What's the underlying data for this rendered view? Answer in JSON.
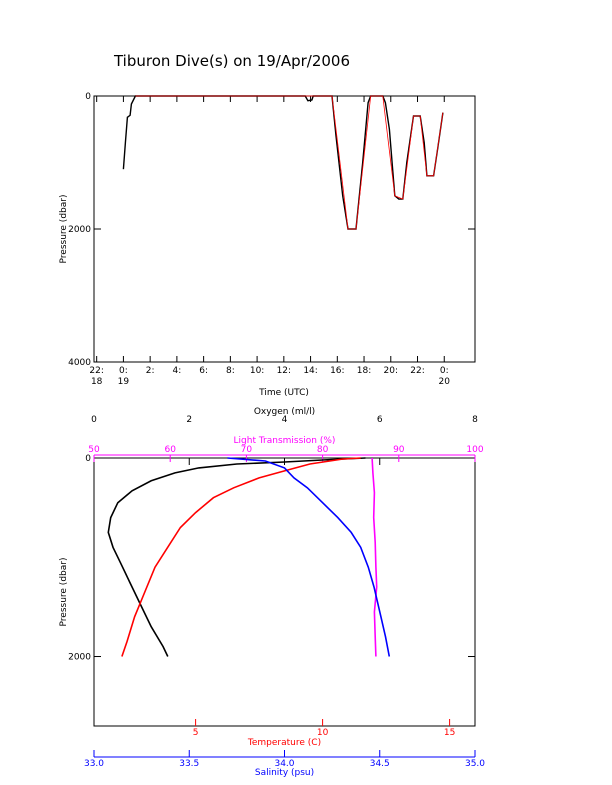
{
  "title": "Tiburon Dive(s) on 19/Apr/2006",
  "colors": {
    "black": "#000000",
    "red": "#ff0000",
    "blue": "#0000ff",
    "magenta": "#ff00ff",
    "pressure_line": "#000000",
    "pressure_fit": "#ff0000"
  },
  "chart_data": [
    {
      "type": "line",
      "name": "pressure-time",
      "title": "Tiburon Dive(s) on 19/Apr/2006",
      "xlabel": "Time (UTC)",
      "ylabel": "Pressure (dbar)",
      "ylim": [
        4000,
        0
      ],
      "xlim_hours": [
        -2.2,
        26.3
      ],
      "y_ticks": [
        "0",
        "2000",
        "4000"
      ],
      "y_tick_values": [
        0,
        2000,
        4000
      ],
      "x_ticks": [
        {
          "h": -2,
          "line1": "22:",
          "line2": "18"
        },
        {
          "h": 0,
          "line1": "0:",
          "line2": "19"
        },
        {
          "h": 2,
          "line1": "2:",
          "line2": ""
        },
        {
          "h": 4,
          "line1": "4:",
          "line2": ""
        },
        {
          "h": 6,
          "line1": "6:",
          "line2": ""
        },
        {
          "h": 8,
          "line1": "8:",
          "line2": ""
        },
        {
          "h": 10,
          "line1": "10:",
          "line2": ""
        },
        {
          "h": 12,
          "line1": "12:",
          "line2": ""
        },
        {
          "h": 14,
          "line1": "14:",
          "line2": ""
        },
        {
          "h": 16,
          "line1": "16:",
          "line2": ""
        },
        {
          "h": 18,
          "line1": "18:",
          "line2": ""
        },
        {
          "h": 20,
          "line1": "20:",
          "line2": ""
        },
        {
          "h": 22,
          "line1": "22:",
          "line2": ""
        },
        {
          "h": 24,
          "line1": "0:",
          "line2": "20"
        }
      ],
      "series": [
        {
          "color_key": "pressure_line",
          "points": [
            [
              0.0,
              1100
            ],
            [
              0.15,
              700
            ],
            [
              0.3,
              320
            ],
            [
              0.5,
              290
            ],
            [
              0.6,
              120
            ],
            [
              0.9,
              0
            ],
            [
              2.0,
              0
            ],
            [
              6.0,
              0
            ],
            [
              10.0,
              0
            ],
            [
              13.6,
              0
            ],
            [
              13.8,
              70
            ],
            [
              14.1,
              60
            ],
            [
              14.2,
              0
            ],
            [
              15.0,
              0
            ],
            [
              15.6,
              0
            ],
            [
              15.9,
              600
            ],
            [
              16.4,
              1500
            ],
            [
              16.8,
              2000
            ],
            [
              17.4,
              2000
            ],
            [
              17.9,
              1000
            ],
            [
              18.3,
              100
            ],
            [
              18.5,
              0
            ],
            [
              19.4,
              0
            ],
            [
              19.6,
              100
            ],
            [
              19.9,
              500
            ],
            [
              20.3,
              1500
            ],
            [
              20.6,
              1550
            ],
            [
              20.9,
              1550
            ],
            [
              21.2,
              1000
            ],
            [
              21.7,
              300
            ],
            [
              22.2,
              300
            ],
            [
              22.5,
              700
            ],
            [
              22.7,
              1200
            ],
            [
              23.2,
              1200
            ],
            [
              23.5,
              800
            ],
            [
              23.9,
              250
            ]
          ]
        },
        {
          "color_key": "pressure_fit",
          "points": [
            [
              0.9,
              0
            ],
            [
              6.0,
              0
            ],
            [
              13.6,
              0
            ],
            [
              15.6,
              0
            ],
            [
              16.8,
              2000
            ],
            [
              17.4,
              2000
            ],
            [
              18.5,
              0
            ],
            [
              19.4,
              0
            ],
            [
              20.3,
              1500
            ],
            [
              20.9,
              1550
            ],
            [
              21.7,
              300
            ],
            [
              22.2,
              300
            ],
            [
              22.7,
              1200
            ],
            [
              23.2,
              1200
            ],
            [
              23.9,
              250
            ]
          ]
        }
      ]
    },
    {
      "type": "line",
      "name": "profiles",
      "ylabel": "Pressure (dbar)",
      "ylim": [
        2700,
        0
      ],
      "y_ticks": [
        "0",
        "2000"
      ],
      "y_tick_values": [
        0,
        2000
      ],
      "axes": [
        {
          "key": "oxygen",
          "position": "top",
          "label": "Oxygen (ml/l)",
          "range": [
            0,
            8
          ],
          "ticks": [
            "0",
            "2",
            "4",
            "6",
            "8"
          ],
          "tick_values": [
            0,
            2,
            4,
            6,
            8
          ],
          "color_key": "black"
        },
        {
          "key": "light",
          "position": "top-inner",
          "label": "Light Transmission (%)",
          "range": [
            50,
            100
          ],
          "ticks": [
            "50",
            "60",
            "70",
            "80",
            "90",
            "100"
          ],
          "tick_values": [
            50,
            60,
            70,
            80,
            90,
            100
          ],
          "color_key": "magenta"
        },
        {
          "key": "temperature",
          "position": "bottom",
          "label": "Temperature (C)",
          "range": [
            1,
            16
          ],
          "ticks": [
            "5",
            "10",
            "15"
          ],
          "tick_values": [
            5,
            10,
            15
          ],
          "color_key": "red"
        },
        {
          "key": "salinity",
          "position": "bottom-outer",
          "label": "Salinity (psu)",
          "range": [
            33.0,
            35.0
          ],
          "ticks": [
            "33.0",
            "33.5",
            "34.0",
            "34.5",
            "35.0"
          ],
          "tick_values": [
            33.0,
            33.5,
            34.0,
            34.5,
            35.0
          ],
          "color_key": "blue"
        }
      ],
      "series": [
        {
          "axis": "oxygen",
          "color_key": "black",
          "points": [
            [
              5.7,
              0
            ],
            [
              5.0,
              15
            ],
            [
              4.0,
              40
            ],
            [
              3.0,
              60
            ],
            [
              2.2,
              100
            ],
            [
              1.7,
              150
            ],
            [
              1.2,
              230
            ],
            [
              0.8,
              330
            ],
            [
              0.5,
              450
            ],
            [
              0.35,
              600
            ],
            [
              0.3,
              750
            ],
            [
              0.4,
              900
            ],
            [
              0.55,
              1050
            ],
            [
              0.75,
              1250
            ],
            [
              0.95,
              1450
            ],
            [
              1.2,
              1700
            ],
            [
              1.45,
              1900
            ],
            [
              1.55,
              2000
            ]
          ]
        },
        {
          "axis": "light",
          "color_key": "magenta",
          "points": [
            [
              86.5,
              0
            ],
            [
              86.6,
              150
            ],
            [
              86.8,
              350
            ],
            [
              86.7,
              600
            ],
            [
              86.9,
              850
            ],
            [
              87.0,
              1100
            ],
            [
              87.1,
              1300
            ],
            [
              86.8,
              1550
            ],
            [
              86.9,
              1800
            ],
            [
              87.0,
              2000
            ]
          ]
        },
        {
          "axis": "temperature",
          "color_key": "red",
          "points": [
            [
              11.5,
              0
            ],
            [
              10.8,
              10
            ],
            [
              9.5,
              60
            ],
            [
              8.5,
              130
            ],
            [
              7.5,
              200
            ],
            [
              6.5,
              300
            ],
            [
              5.7,
              400
            ],
            [
              5.0,
              550
            ],
            [
              4.4,
              700
            ],
            [
              3.9,
              900
            ],
            [
              3.4,
              1100
            ],
            [
              3.0,
              1350
            ],
            [
              2.6,
              1600
            ],
            [
              2.3,
              1850
            ],
            [
              2.1,
              2000
            ]
          ]
        },
        {
          "axis": "salinity",
          "color_key": "blue",
          "points": [
            [
              33.7,
              0
            ],
            [
              33.9,
              30
            ],
            [
              34.0,
              100
            ],
            [
              34.05,
              200
            ],
            [
              34.12,
              300
            ],
            [
              34.2,
              450
            ],
            [
              34.28,
              600
            ],
            [
              34.35,
              750
            ],
            [
              34.4,
              900
            ],
            [
              34.44,
              1100
            ],
            [
              34.47,
              1300
            ],
            [
              34.5,
              1550
            ],
            [
              34.53,
              1800
            ],
            [
              34.55,
              2000
            ]
          ]
        }
      ]
    }
  ]
}
